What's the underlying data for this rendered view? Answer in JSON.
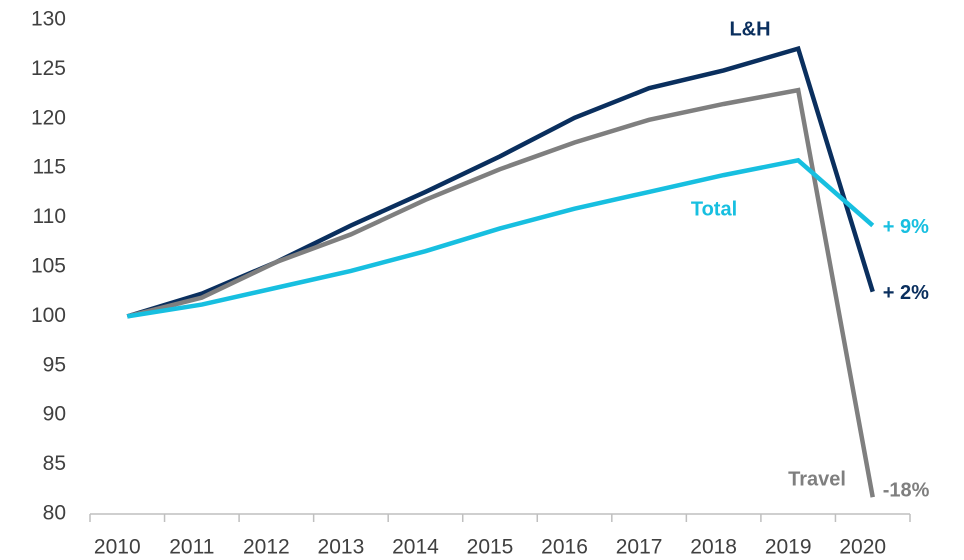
{
  "chart_data": {
    "type": "line",
    "categories": [
      "2010",
      "2011",
      "2012",
      "2013",
      "2014",
      "2015",
      "2016",
      "2017",
      "2018",
      "2019",
      "2020"
    ],
    "series": [
      {
        "name": "L&H",
        "color": "#0a2f5e",
        "end_label": "+ 2%",
        "values": [
          100,
          102.3,
          105.5,
          109.2,
          112.6,
          116.2,
          120.1,
          123.1,
          124.9,
          127.1,
          102.5
        ]
      },
      {
        "name": "Travel",
        "color": "#7f7f7f",
        "end_label": "-18%",
        "values": [
          100,
          101.9,
          105.5,
          108.3,
          111.8,
          114.9,
          117.6,
          119.9,
          121.5,
          122.9,
          81.7
        ]
      },
      {
        "name": "Total",
        "color": "#17bfe0",
        "end_label": "+ 9%",
        "values": [
          100,
          101.2,
          102.9,
          104.6,
          106.6,
          108.9,
          110.9,
          112.6,
          114.3,
          115.8,
          109.2
        ]
      }
    ],
    "ylim": [
      80,
      130
    ],
    "yticks": [
      80,
      85,
      90,
      95,
      100,
      105,
      110,
      115,
      120,
      125,
      130
    ],
    "grid": false
  }
}
